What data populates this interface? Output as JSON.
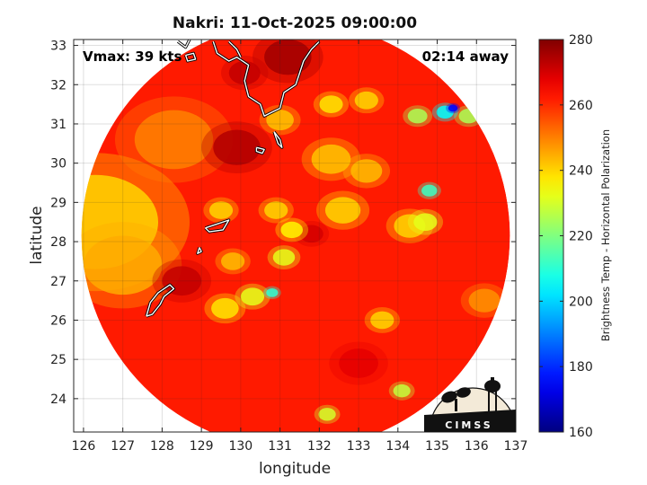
{
  "chart_data": {
    "type": "heatmap",
    "title": "Nakri: 11-Oct-2025 09:00:00",
    "xlabel": "longitude",
    "ylabel": "latitude",
    "xlim": [
      125.75,
      137.0
    ],
    "ylim": [
      23.15,
      33.15
    ],
    "xticks": [
      "126",
      "127",
      "128",
      "129",
      "130",
      "131",
      "132",
      "133",
      "134",
      "135",
      "136",
      "137"
    ],
    "yticks": [
      "24",
      "25",
      "26",
      "27",
      "28",
      "29",
      "30",
      "31",
      "32",
      "33"
    ],
    "grid": true,
    "annotation_left": "Vmax: 39 kts",
    "annotation_right": "02:14 away",
    "colorbar": {
      "label": "Brightness Temp - Horizontal Polarization",
      "min": 160,
      "max": 280,
      "ticks": [
        "160",
        "180",
        "200",
        "220",
        "240",
        "260",
        "280"
      ],
      "colormap": "jet"
    },
    "swath": {
      "center_lon": 131.4,
      "center_lat": 28.15,
      "radius_deg": 5.45
    },
    "field": {
      "base_value": 262,
      "features": [
        {
          "lon": 126.3,
          "lat": 28.5,
          "value": 240,
          "size": 1.6
        },
        {
          "lon": 127.0,
          "lat": 27.4,
          "value": 245,
          "size": 1.0
        },
        {
          "lon": 128.3,
          "lat": 30.6,
          "value": 250,
          "size": 1.0
        },
        {
          "lon": 128.5,
          "lat": 27.0,
          "value": 272,
          "size": 0.5
        },
        {
          "lon": 129.6,
          "lat": 26.3,
          "value": 238,
          "size": 0.35
        },
        {
          "lon": 130.8,
          "lat": 26.7,
          "value": 210,
          "size": 0.15
        },
        {
          "lon": 130.3,
          "lat": 26.6,
          "value": 232,
          "size": 0.3
        },
        {
          "lon": 131.1,
          "lat": 27.6,
          "value": 232,
          "size": 0.28
        },
        {
          "lon": 131.3,
          "lat": 28.3,
          "value": 236,
          "size": 0.28
        },
        {
          "lon": 130.9,
          "lat": 28.8,
          "value": 240,
          "size": 0.3
        },
        {
          "lon": 131.8,
          "lat": 28.2,
          "value": 270,
          "size": 0.3
        },
        {
          "lon": 132.6,
          "lat": 28.8,
          "value": 240,
          "size": 0.45
        },
        {
          "lon": 132.3,
          "lat": 30.1,
          "value": 242,
          "size": 0.5
        },
        {
          "lon": 133.2,
          "lat": 29.8,
          "value": 243,
          "size": 0.4
        },
        {
          "lon": 134.3,
          "lat": 28.4,
          "value": 240,
          "size": 0.4
        },
        {
          "lon": 134.8,
          "lat": 29.3,
          "value": 212,
          "size": 0.2
        },
        {
          "lon": 134.7,
          "lat": 28.5,
          "value": 232,
          "size": 0.3
        },
        {
          "lon": 134.5,
          "lat": 31.2,
          "value": 225,
          "size": 0.25
        },
        {
          "lon": 135.4,
          "lat": 31.4,
          "value": 175,
          "size": 0.12
        },
        {
          "lon": 135.2,
          "lat": 31.3,
          "value": 205,
          "size": 0.22
        },
        {
          "lon": 135.8,
          "lat": 31.2,
          "value": 225,
          "size": 0.25
        },
        {
          "lon": 132.3,
          "lat": 31.5,
          "value": 238,
          "size": 0.3
        },
        {
          "lon": 133.2,
          "lat": 31.6,
          "value": 240,
          "size": 0.3
        },
        {
          "lon": 131.0,
          "lat": 31.1,
          "value": 242,
          "size": 0.35
        },
        {
          "lon": 129.5,
          "lat": 28.8,
          "value": 240,
          "size": 0.3
        },
        {
          "lon": 129.8,
          "lat": 27.5,
          "value": 243,
          "size": 0.3
        },
        {
          "lon": 133.6,
          "lat": 26.0,
          "value": 240,
          "size": 0.3
        },
        {
          "lon": 134.1,
          "lat": 24.2,
          "value": 228,
          "size": 0.22
        },
        {
          "lon": 132.2,
          "lat": 23.6,
          "value": 230,
          "size": 0.22
        },
        {
          "lon": 129.9,
          "lat": 30.4,
          "value": 274,
          "size": 0.6
        },
        {
          "lon": 131.2,
          "lat": 32.7,
          "value": 276,
          "size": 0.6
        },
        {
          "lon": 130.1,
          "lat": 32.3,
          "value": 272,
          "size": 0.4
        },
        {
          "lon": 136.2,
          "lat": 26.5,
          "value": 248,
          "size": 0.4
        },
        {
          "lon": 133.0,
          "lat": 24.9,
          "value": 268,
          "size": 0.5
        }
      ]
    },
    "coastlines": [
      {
        "name": "kyushu",
        "points": [
          [
            129.3,
            33.1
          ],
          [
            129.4,
            32.8
          ],
          [
            129.7,
            32.6
          ],
          [
            129.9,
            32.7
          ],
          [
            130.2,
            32.5
          ],
          [
            130.1,
            32.1
          ],
          [
            130.2,
            31.7
          ],
          [
            130.5,
            31.5
          ],
          [
            130.6,
            31.2
          ],
          [
            130.8,
            31.3
          ],
          [
            131.0,
            31.4
          ],
          [
            131.1,
            31.8
          ],
          [
            131.4,
            32.0
          ],
          [
            131.5,
            32.3
          ],
          [
            131.6,
            32.6
          ],
          [
            131.8,
            32.9
          ],
          [
            132.0,
            33.1
          ]
        ]
      },
      {
        "name": "kyushu-west",
        "points": [
          [
            129.7,
            33.1
          ],
          [
            129.9,
            32.9
          ],
          [
            130.0,
            32.7
          ]
        ]
      },
      {
        "name": "tanegashima",
        "points": [
          [
            130.85,
            30.8
          ],
          [
            131.0,
            30.6
          ],
          [
            131.05,
            30.4
          ],
          [
            130.95,
            30.5
          ],
          [
            130.85,
            30.8
          ]
        ]
      },
      {
        "name": "yakushima",
        "points": [
          [
            130.4,
            30.4
          ],
          [
            130.6,
            30.35
          ],
          [
            130.55,
            30.25
          ],
          [
            130.4,
            30.3
          ],
          [
            130.4,
            30.4
          ]
        ]
      },
      {
        "name": "amami",
        "points": [
          [
            129.1,
            28.35
          ],
          [
            129.4,
            28.45
          ],
          [
            129.7,
            28.55
          ],
          [
            129.55,
            28.3
          ],
          [
            129.2,
            28.25
          ],
          [
            129.1,
            28.35
          ]
        ]
      },
      {
        "name": "tokunoshima",
        "points": [
          [
            128.95,
            27.85
          ],
          [
            129.0,
            27.75
          ],
          [
            128.9,
            27.7
          ],
          [
            128.95,
            27.85
          ]
        ]
      },
      {
        "name": "okinawa",
        "points": [
          [
            127.6,
            26.1
          ],
          [
            127.7,
            26.45
          ],
          [
            127.9,
            26.7
          ],
          [
            128.2,
            26.9
          ],
          [
            128.3,
            26.8
          ],
          [
            128.05,
            26.6
          ],
          [
            127.95,
            26.4
          ],
          [
            127.75,
            26.15
          ],
          [
            127.6,
            26.1
          ]
        ]
      },
      {
        "name": "sado-north",
        "points": [
          [
            128.4,
            33.1
          ],
          [
            128.6,
            32.95
          ],
          [
            128.7,
            33.15
          ]
        ]
      },
      {
        "name": "goto",
        "points": [
          [
            128.6,
            32.75
          ],
          [
            128.8,
            32.8
          ],
          [
            128.85,
            32.65
          ],
          [
            128.65,
            32.6
          ],
          [
            128.6,
            32.75
          ]
        ]
      }
    ],
    "logo_text": "CIMSS"
  }
}
